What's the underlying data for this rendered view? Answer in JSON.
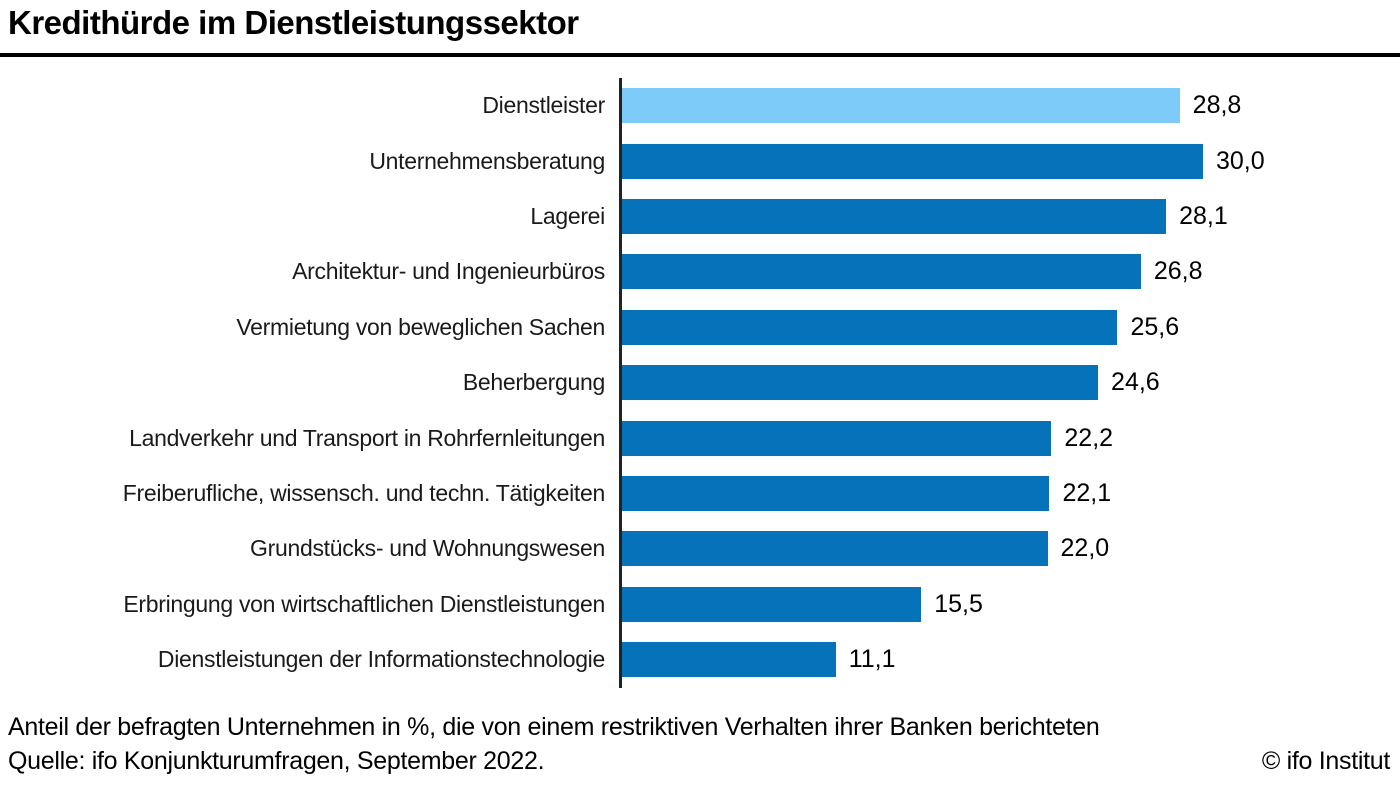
{
  "title": "Kredithürde im Dienstleistungssektor",
  "chart_data": {
    "type": "bar",
    "orientation": "horizontal",
    "title": "Kredithürde im Dienstleistungssektor",
    "categories": [
      "Dienstleister",
      "Unternehmensberatung",
      "Lagerei",
      "Architektur- und Ingenieurbüros",
      "Vermietung von beweglichen Sachen",
      "Beherbergung",
      "Landverkehr und Transport in Rohrfernleitungen",
      "Freiberufliche, wissensch. und techn. Tätigkeiten",
      "Grundstücks- und Wohnungswesen",
      "Erbringung von wirtschaftlichen Dienstleistungen",
      "Dienstleistungen der Informationstechnologie"
    ],
    "values": [
      28.8,
      30.0,
      28.1,
      26.8,
      25.6,
      24.6,
      22.2,
      22.1,
      22.0,
      15.5,
      11.1
    ],
    "value_labels": [
      "28,8",
      "30,0",
      "28,1",
      "26,8",
      "25,6",
      "24,6",
      "22,2",
      "22,1",
      "22,0",
      "15,5",
      "11,1"
    ],
    "xlim": [
      0,
      30
    ],
    "grid": false,
    "legend": "none",
    "highlight_category": "Dienstleister",
    "colors": {
      "highlight_bar": "#7DCBF9",
      "default_bar": "#0572B9",
      "axis": "#222222",
      "text": "#1a1a1a"
    }
  },
  "footer": {
    "note": "Anteil der befragten Unternehmen in %, die von einem restriktiven Verhalten ihrer Banken berichteten",
    "source": "Quelle: ifo Konjunkturumfragen, September 2022.",
    "copyright": "© ifo Institut"
  }
}
